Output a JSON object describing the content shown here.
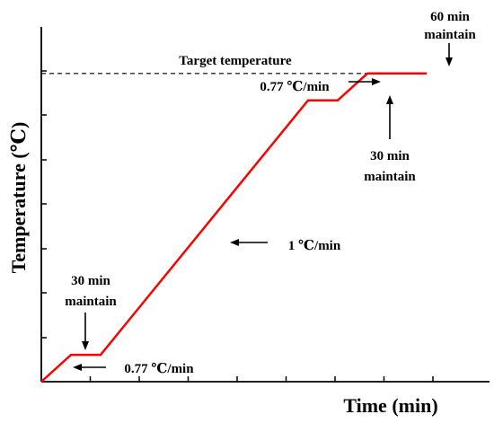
{
  "chart_data": {
    "type": "line",
    "title": "",
    "xlabel": "Time (min)",
    "ylabel": "Temperature (℃)",
    "grid": false,
    "series": [
      {
        "color": "#ff0000",
        "points": [
          {
            "x": 0,
            "y": 0
          },
          {
            "x": 30,
            "y": 23
          },
          {
            "x": 60,
            "y": 23
          },
          {
            "x": 270,
            "y": 241
          },
          {
            "x": 300,
            "y": 241
          },
          {
            "x": 330,
            "y": 264
          },
          {
            "x": 390,
            "y": 264
          }
        ]
      }
    ],
    "target_line": {
      "y": 264,
      "style": "dashed",
      "color": "#000000"
    },
    "annotations": {
      "target": "Target temperature",
      "rate_top": "0.77 ℃/min",
      "hold_60": [
        "60 min",
        "maintain"
      ],
      "hold_30_upper": [
        "30 min",
        "maintain"
      ],
      "rate_middle": "1 ℃/min",
      "hold_30_lower": [
        "30 min",
        "maintain"
      ],
      "rate_bottom": "0.77 ℃/min"
    },
    "colors": {
      "line": "#ff0000",
      "axis": "#000000"
    }
  }
}
